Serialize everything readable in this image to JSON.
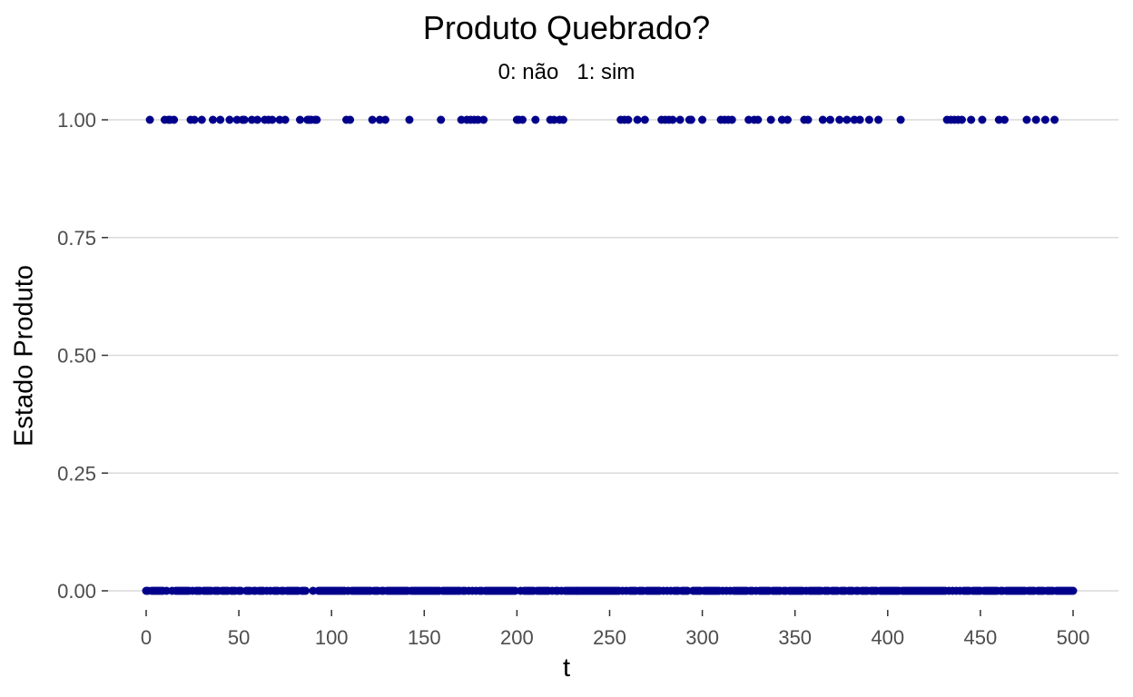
{
  "chart_data": {
    "type": "scatter",
    "title": "Produto Quebrado?",
    "subtitle": "0: não   1: sim",
    "xlabel": "t",
    "ylabel": "Estado Produto",
    "xlim": [
      0,
      500
    ],
    "ylim": [
      0,
      1
    ],
    "x_ticks": [
      "0",
      "50",
      "100",
      "150",
      "200",
      "250",
      "300",
      "350",
      "400",
      "450",
      "500"
    ],
    "y_ticks": [
      "0.00",
      "0.25",
      "0.50",
      "0.75",
      "1.00"
    ],
    "grid": "horizontal",
    "legend": "none",
    "colors": {
      "point": "#00008B",
      "grid": "#d9d9d9",
      "axis_text": "#4d4d4d"
    },
    "ones_x": [
      2,
      10,
      12,
      13,
      15,
      24,
      26,
      30,
      36,
      40,
      45,
      49,
      52,
      53,
      57,
      60,
      64,
      66,
      68,
      72,
      75,
      83,
      87,
      88,
      89,
      91,
      92,
      108,
      110,
      122,
      126,
      129,
      142,
      159,
      170,
      173,
      175,
      177,
      179,
      182,
      200,
      201,
      203,
      210,
      218,
      220,
      223,
      225,
      256,
      258,
      260,
      265,
      269,
      278,
      280,
      282,
      284,
      288,
      293,
      294,
      300,
      310,
      312,
      314,
      316,
      325,
      328,
      330,
      337,
      343,
      346,
      355,
      357,
      365,
      369,
      374,
      378,
      382,
      385,
      390,
      395,
      407,
      432,
      434,
      436,
      438,
      440,
      445,
      451,
      460,
      463,
      475,
      480,
      485,
      490
    ],
    "zeros_x": "all other integer t from 0 to 500"
  }
}
